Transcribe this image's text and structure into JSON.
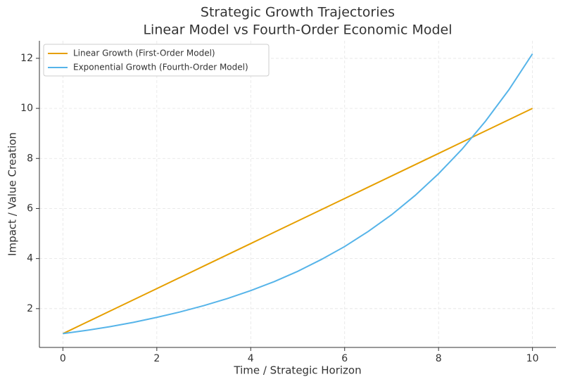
{
  "chart_data": {
    "type": "line",
    "title": "Strategic Growth Trajectories",
    "subtitle": "Linear Model vs Fourth-Order Economic Model",
    "x_label": "Time / Strategic Horizon",
    "y_label": "Impact / Value Creation",
    "x": [
      0,
      0.5,
      1,
      1.5,
      2,
      2.5,
      3,
      3.5,
      4,
      4.5,
      5,
      5.5,
      6,
      6.5,
      7,
      7.5,
      8,
      8.5,
      9,
      9.5,
      10
    ],
    "series": [
      {
        "name": "Linear Growth (First-Order Model)",
        "color": "#e69f00",
        "values": [
          1,
          1.45,
          1.9,
          2.35,
          2.8,
          3.25,
          3.7,
          4.15,
          4.6,
          5.05,
          5.5,
          5.95,
          6.4,
          6.85,
          7.3,
          7.75,
          8.2,
          8.65,
          9.1,
          9.55,
          10
        ]
      },
      {
        "name": "Exponential Growth (Fourth-Order Model)",
        "color": "#56b4e9",
        "values": [
          1.0,
          1.13,
          1.28,
          1.45,
          1.65,
          1.87,
          2.12,
          2.4,
          2.72,
          3.08,
          3.49,
          3.96,
          4.48,
          5.08,
          5.75,
          6.52,
          7.39,
          8.37,
          9.49,
          10.75,
          12.18
        ]
      }
    ],
    "xlim": [
      -0.5,
      10.5
    ],
    "xticks": [
      0,
      2,
      4,
      6,
      8,
      10
    ],
    "ylim": [
      0.45,
      12.7
    ],
    "yticks": [
      2,
      4,
      6,
      8,
      10,
      12
    ],
    "grid": true,
    "legend": "upper-left"
  }
}
